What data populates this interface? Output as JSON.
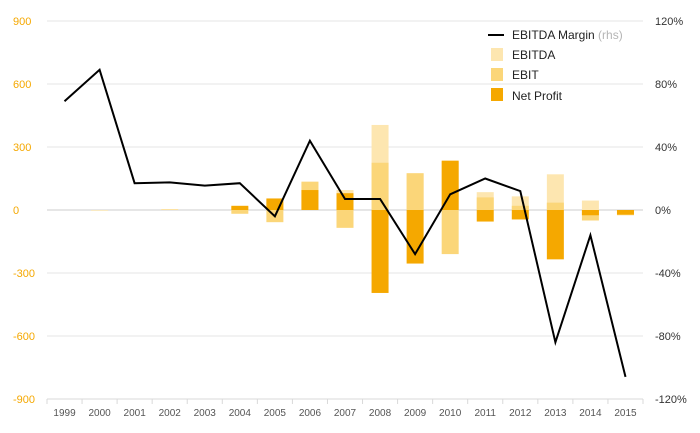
{
  "chart_data": {
    "type": "bar",
    "categories": [
      "1999",
      "2000",
      "2001",
      "2002",
      "2003",
      "2004",
      "2005",
      "2006",
      "2007",
      "2008",
      "2009",
      "2010",
      "2011",
      "2012",
      "2013",
      "2014",
      "2015"
    ],
    "series": [
      {
        "name": "EBITDA",
        "kind": "bar",
        "axis": "left",
        "color": "#fde6b0",
        "values": [
          0,
          0,
          0,
          3,
          0,
          15,
          50,
          130,
          95,
          405,
          175,
          230,
          85,
          65,
          170,
          45,
          0
        ]
      },
      {
        "name": "EBIT",
        "kind": "bar",
        "axis": "left",
        "color": "#fbd679",
        "values": [
          0,
          -2,
          0,
          3,
          0,
          -18,
          -58,
          135,
          -85,
          225,
          175,
          -210,
          60,
          20,
          35,
          -50,
          -25
        ]
      },
      {
        "name": "Net Profit",
        "kind": "bar",
        "axis": "left",
        "color": "#f5a800",
        "values": [
          0,
          0,
          0,
          0,
          0,
          20,
          55,
          95,
          80,
          -395,
          -255,
          235,
          -55,
          -45,
          -235,
          -25,
          -22
        ]
      },
      {
        "name": "EBITDA Margin",
        "note": "(rhs)",
        "kind": "line",
        "axis": "right",
        "color": "#000000",
        "values": [
          69,
          89,
          17,
          17.5,
          15.5,
          17,
          -4,
          44,
          7,
          7,
          -28,
          10,
          20,
          12,
          -84,
          -16,
          -106
        ]
      }
    ],
    "y_left": {
      "min": -900,
      "max": 900,
      "ticks": [
        -900,
        -600,
        -300,
        0,
        300,
        600,
        900
      ],
      "labels": [
        "-900",
        "-600",
        "-300",
        "0",
        "300",
        "600",
        "900"
      ]
    },
    "y_right": {
      "min": -120,
      "max": 120,
      "ticks": [
        -120,
        -80,
        -40,
        0,
        40,
        80,
        120
      ],
      "labels": [
        "-120%",
        "-80%",
        "-40%",
        "0%",
        "40%",
        "80%",
        "120%"
      ]
    },
    "grid": true,
    "legend": {
      "position": "top-right",
      "items": [
        {
          "label": "EBITDA Margin",
          "note": "(rhs)",
          "type": "line",
          "color": "#000000"
        },
        {
          "label": "EBITDA",
          "type": "box",
          "color": "#fde6b0"
        },
        {
          "label": "EBIT",
          "type": "box",
          "color": "#fbd679"
        },
        {
          "label": "Net Profit",
          "type": "box",
          "color": "#f5a800"
        }
      ]
    },
    "title": "",
    "xlabel": "",
    "ylabel": ""
  },
  "colors": {
    "left_axis_text": "#f5a800",
    "grid": "#e6e6e6",
    "zero_line": "#cccccc"
  }
}
